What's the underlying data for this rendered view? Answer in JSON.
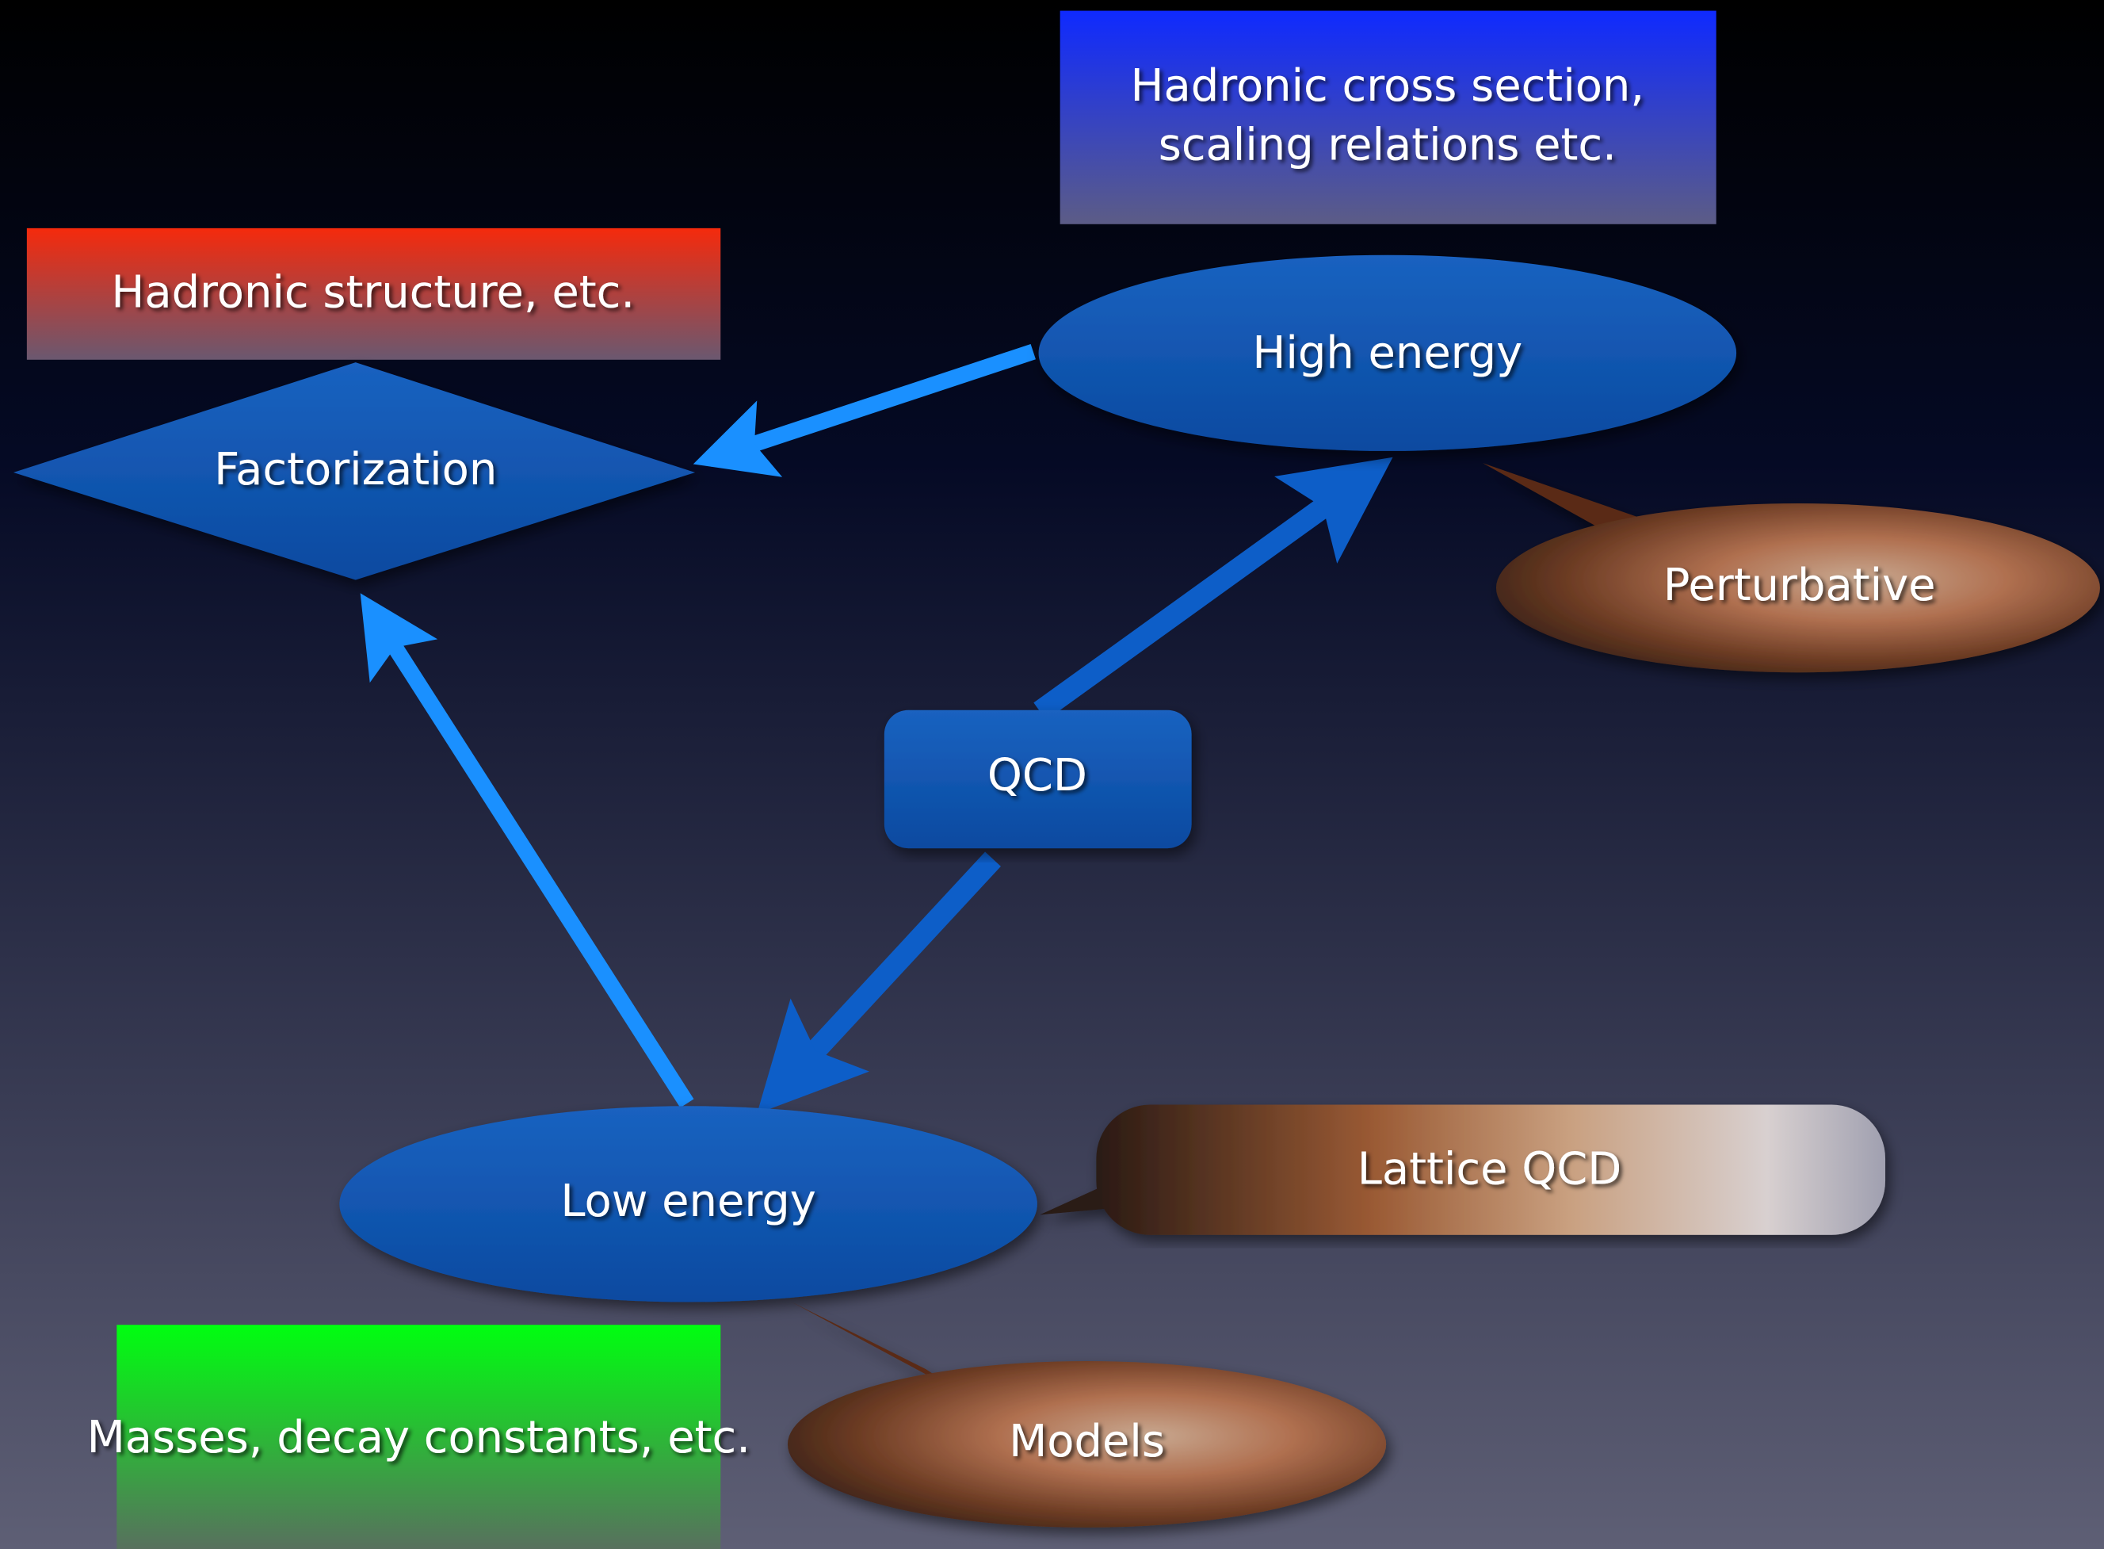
{
  "nodes": [
    {
      "label": [
        "Hadronic cross section,",
        "scaling relations etc."
      ]
    },
    {
      "label": [
        "Hadronic structure, etc."
      ]
    },
    {
      "label": [
        "Factorization"
      ]
    },
    {
      "label": [
        "High energy"
      ]
    },
    {
      "label": [
        "Perturbative"
      ]
    },
    {
      "label": [
        "QCD"
      ]
    },
    {
      "label": [
        "Lattice QCD"
      ]
    },
    {
      "label": [
        "Low energy"
      ]
    },
    {
      "label": [
        "Masses, decay constants, etc."
      ]
    },
    {
      "label": [
        "Models"
      ]
    }
  ]
}
